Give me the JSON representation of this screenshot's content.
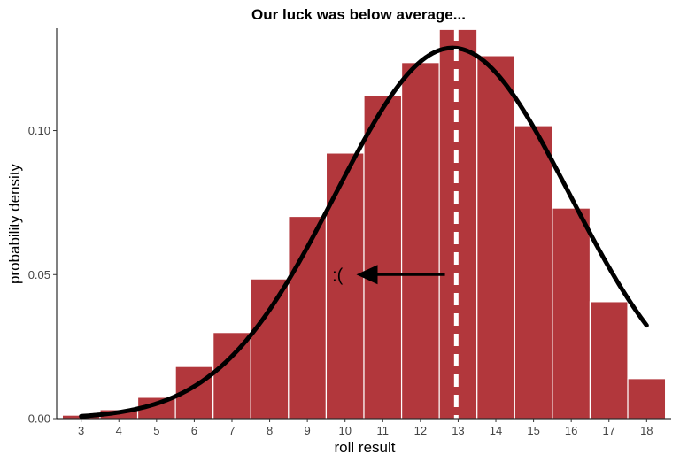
{
  "chart_data": {
    "type": "bar",
    "title": "Our luck was below average...",
    "xlabel": "roll result",
    "ylabel": "probability density",
    "categories": [
      "3",
      "4",
      "5",
      "6",
      "7",
      "8",
      "9",
      "10",
      "11",
      "12",
      "13",
      "14",
      "15",
      "16",
      "17",
      "18"
    ],
    "values": [
      0.0012,
      0.0031,
      0.0074,
      0.0181,
      0.0299,
      0.0485,
      0.0702,
      0.0922,
      0.1122,
      0.1236,
      0.1351,
      0.126,
      0.1017,
      0.0731,
      0.0406,
      0.0139
    ],
    "xlim": [
      2.35,
      18.65
    ],
    "ylim": [
      0,
      0.1355
    ],
    "yticks": [
      0.0,
      0.05,
      0.1
    ],
    "ytick_labels": [
      "0.00",
      "0.05",
      "0.10"
    ],
    "bar_color": "#B03136",
    "curve": {
      "type": "normal-density",
      "mean": 12.85,
      "sd": 3.1,
      "x_range": [
        3,
        18
      ],
      "color": "#000000"
    },
    "vline": {
      "x": 12.95,
      "style": "dashed",
      "color": "#ffffff"
    },
    "annotation": {
      "text": ":(",
      "text_x": 9.8,
      "text_y": 0.05,
      "arrow_from_x": 12.65,
      "arrow_to_x": 10.3,
      "arrow_y": 0.05
    },
    "grid": false,
    "legend": "none"
  }
}
